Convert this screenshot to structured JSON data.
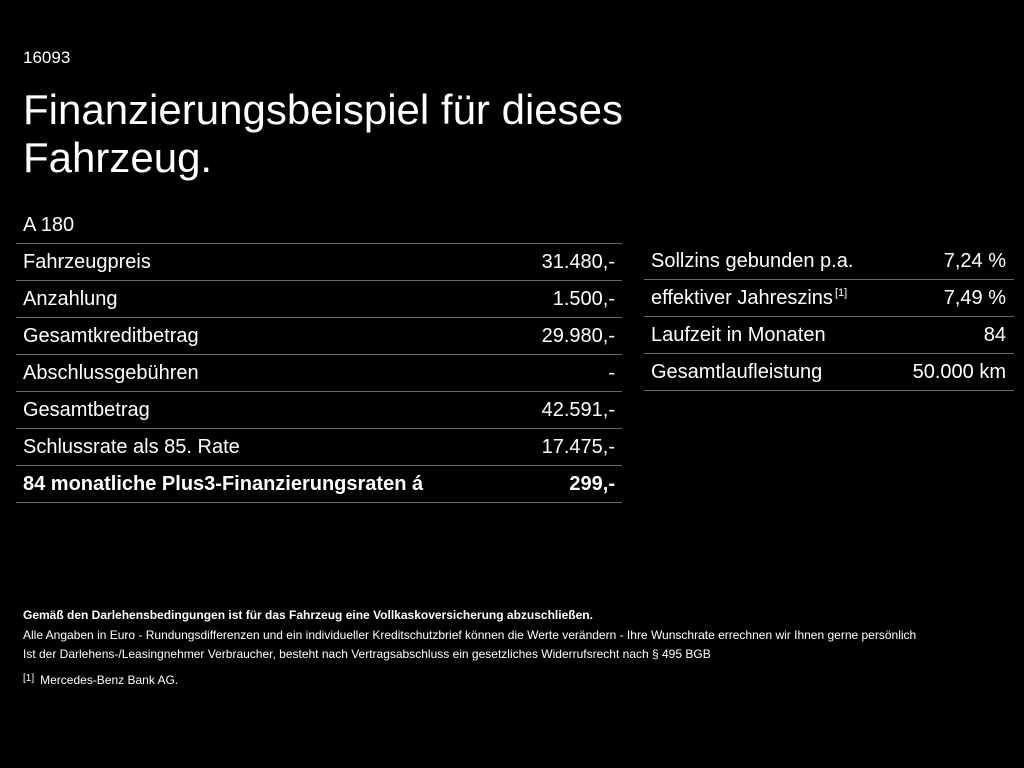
{
  "header": {
    "code": "16093",
    "title": "Finanzierungsbeispiel für dieses Fahrzeug.",
    "model": "A 180"
  },
  "left_table": [
    {
      "label": "Fahrzeugpreis",
      "value": "31.480,-"
    },
    {
      "label": "Anzahlung",
      "value": "1.500,-"
    },
    {
      "label": "Gesamtkreditbetrag",
      "value": "29.980,-"
    },
    {
      "label": "Abschlussgebühren",
      "value": "-"
    },
    {
      "label": "Gesamtbetrag",
      "value": "42.591,-"
    },
    {
      "label": "Schlussrate als 85. Rate",
      "value": "17.475,-"
    },
    {
      "label": "84 monatliche Plus3-Finanzierungsraten á",
      "value": "299,-"
    }
  ],
  "right_table": [
    {
      "label": "Sollzins gebunden p.a.",
      "value": "7,24 %"
    },
    {
      "label": "effektiver Jahreszins",
      "sup": "[1]",
      "value": "7,49 %"
    },
    {
      "label": "Laufzeit in Monaten",
      "value": "84"
    },
    {
      "label": "Gesamtlaufleistung",
      "value": "50.000 km"
    }
  ],
  "notes": {
    "insurance": "Gemäß den Darlehensbedingungen ist für das Fahrzeug eine Vollkaskoversicherung abzuschließen.",
    "euro": "Alle Angaben in Euro - Rundungsdifferenzen und ein individueller Kreditschutzbrief können die Werte verändern - Ihre Wunschrate errechnen wir Ihnen gerne persönlich",
    "withdrawal": "Ist der Darlehens-/Leasingnehmer Verbraucher, besteht nach Vertragsabschluss ein gesetzliches Widerrufsrecht nach § 495 BGB",
    "footnote_mark": "[1]",
    "footnote_text": "Mercedes-Benz Bank AG."
  }
}
